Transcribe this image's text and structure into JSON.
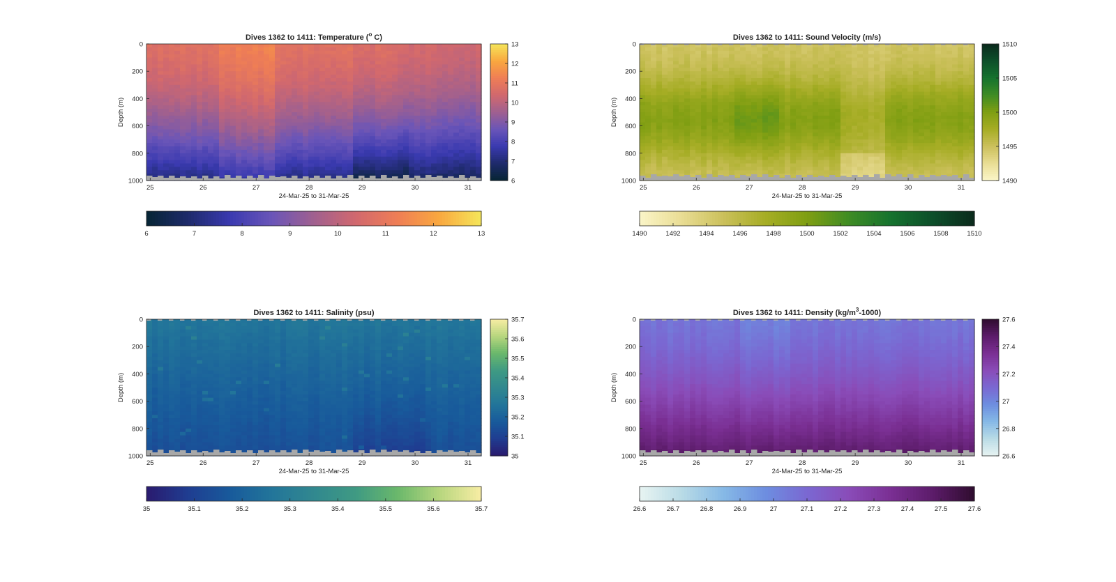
{
  "chart_data": [
    {
      "type": "heatmap",
      "title": "Dives 1362 to 1411: Temperature (",
      "title_unit_sup": "o",
      "title_tail": " C)",
      "xlabel": "24-Mar-25 to 31-Mar-25",
      "ylabel": "Depth (m)",
      "x_ticks": [
        "25",
        "26",
        "27",
        "28",
        "29",
        "30",
        "31"
      ],
      "xlim": [
        24.93,
        31.25
      ],
      "ylim": [
        0,
        1000
      ],
      "y_ticks": [
        "0",
        "200",
        "400",
        "600",
        "800",
        "1000"
      ],
      "y_reversed": true,
      "colormap": [
        "#062534",
        "#1e2a6b",
        "#3a3ab0",
        "#6a55b8",
        "#a0608f",
        "#d1686e",
        "#ef7e55",
        "#f9a83f",
        "#f5e65a"
      ],
      "clim": [
        6,
        13
      ],
      "colorbar_right_ticks": [
        "6",
        "7",
        "8",
        "9",
        "10",
        "11",
        "12",
        "13"
      ],
      "colorbar_bottom_ticks": [
        "6",
        "7",
        "8",
        "9",
        "10",
        "11",
        "12",
        "13"
      ],
      "profile_surface": 10.6,
      "profile_deep": 6.9,
      "description_of_field": "warm near surface, cooling with depth"
    },
    {
      "type": "heatmap",
      "title": "Dives 1362 to 1411: Sound Velocity (m/s)",
      "xlabel": "24-Mar-25 to 31-Mar-25",
      "ylabel": "Depth (m)",
      "x_ticks": [
        "25",
        "26",
        "27",
        "28",
        "29",
        "30",
        "31"
      ],
      "xlim": [
        24.93,
        31.25
      ],
      "ylim": [
        0,
        1000
      ],
      "y_ticks": [
        "0",
        "200",
        "400",
        "600",
        "800",
        "1000"
      ],
      "y_reversed": true,
      "colormap": [
        "#fbf5c8",
        "#e9dd94",
        "#cbc05b",
        "#a6ad25",
        "#7f9e12",
        "#3f8c24",
        "#15722e",
        "#0d4f2a",
        "#0b2a1c"
      ],
      "clim": [
        1490,
        1510
      ],
      "colorbar_right_ticks": [
        "1490",
        "1495",
        "1500",
        "1505",
        "1510"
      ],
      "colorbar_bottom_ticks": [
        "1490",
        "1492",
        "1494",
        "1496",
        "1498",
        "1500",
        "1502",
        "1504",
        "1506",
        "1508",
        "1510"
      ],
      "profile_surface": 1494.5,
      "profile_mid": 1499.5,
      "profile_deep": 1496.0
    },
    {
      "type": "heatmap",
      "title": "Dives 1362 to 1411: Salinity (psu)",
      "xlabel": "24-Mar-25 to 31-Mar-25",
      "ylabel": "Depth (m)",
      "x_ticks": [
        "25",
        "26",
        "27",
        "28",
        "29",
        "30",
        "31"
      ],
      "xlim": [
        24.93,
        31.25
      ],
      "ylim": [
        0,
        1000
      ],
      "y_ticks": [
        "0",
        "200",
        "400",
        "600",
        "800",
        "1000"
      ],
      "y_reversed": true,
      "colormap": [
        "#2a1a6e",
        "#1f3d91",
        "#185a9b",
        "#22759a",
        "#31888f",
        "#3f9a83",
        "#6ab86b",
        "#b7d67e",
        "#f8eda4"
      ],
      "clim": [
        35,
        35.7
      ],
      "colorbar_right_ticks": [
        "35",
        "35.1",
        "35.2",
        "35.3",
        "35.4",
        "35.5",
        "35.6",
        "35.7"
      ],
      "colorbar_bottom_ticks": [
        "35",
        "35.1",
        "35.2",
        "35.3",
        "35.4",
        "35.5",
        "35.6",
        "35.7"
      ],
      "profile_surface": 35.27,
      "profile_deep": 35.14
    },
    {
      "type": "heatmap",
      "title": "Dives 1362 to 1411: Density (kg/m",
      "title_unit_sup": "3",
      "title_tail": "-1000)",
      "xlabel": "24-Mar-25 to 31-Mar-25",
      "ylabel": "Depth (m)",
      "x_ticks": [
        "25",
        "26",
        "27",
        "28",
        "29",
        "30",
        "31"
      ],
      "xlim": [
        24.93,
        31.25
      ],
      "ylim": [
        0,
        1000
      ],
      "y_ticks": [
        "0",
        "200",
        "400",
        "600",
        "800",
        "1000"
      ],
      "y_reversed": true,
      "colormap": [
        "#e8f4f2",
        "#b9dbe6",
        "#86b9e6",
        "#6d8ee0",
        "#7a68d2",
        "#8a4cb8",
        "#7a2f93",
        "#5c1c6a",
        "#2f0c2e"
      ],
      "clim": [
        26.6,
        27.6
      ],
      "colorbar_right_ticks": [
        "26.6",
        "26.8",
        "27",
        "27.2",
        "27.4",
        "27.6"
      ],
      "colorbar_bottom_ticks": [
        "26.6",
        "26.7",
        "26.8",
        "26.9",
        "27",
        "27.1",
        "27.2",
        "27.3",
        "27.4",
        "27.5",
        "27.6"
      ],
      "profile_surface": 27.06,
      "profile_deep": 27.48
    }
  ]
}
